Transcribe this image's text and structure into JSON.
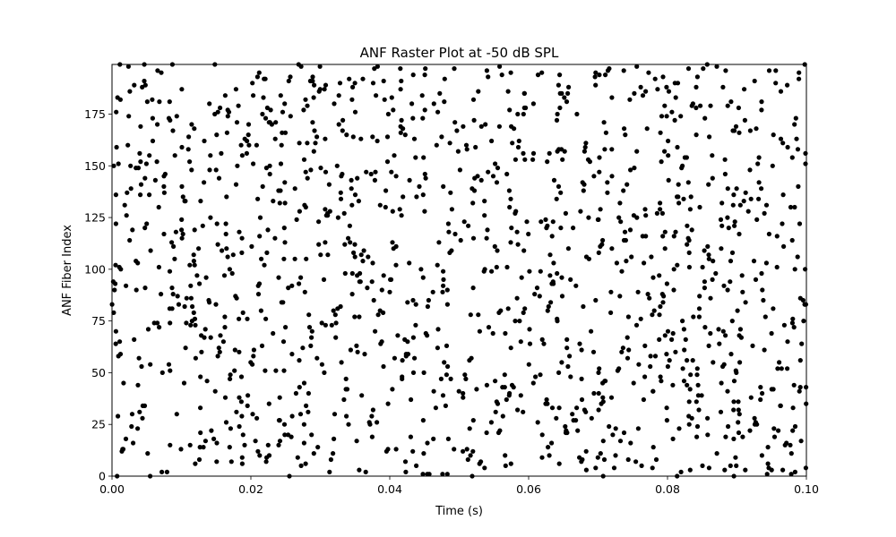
{
  "chart_data": {
    "type": "scatter",
    "title": "ANF Raster Plot at -50 dB SPL",
    "xlabel": "Time (s)",
    "ylabel": "ANF Fiber Index",
    "xlim": [
      0.0,
      0.1
    ],
    "ylim": [
      0,
      199
    ],
    "x_ticks": [
      0.0,
      0.02,
      0.04,
      0.06,
      0.08,
      0.1
    ],
    "x_tick_labels": [
      "0.00",
      "0.02",
      "0.04",
      "0.06",
      "0.08",
      "0.10"
    ],
    "y_ticks": [
      0,
      25,
      50,
      75,
      100,
      125,
      150,
      175
    ],
    "y_tick_labels": [
      "0",
      "25",
      "50",
      "75",
      "100",
      "125",
      "150",
      "175"
    ],
    "grid": false,
    "legend": "none",
    "marker_color": "#000000",
    "spike_train": {
      "fiber_count": 200,
      "time_start": 0.0,
      "time_end": 0.1,
      "spikes_per_fiber": 7
    }
  }
}
